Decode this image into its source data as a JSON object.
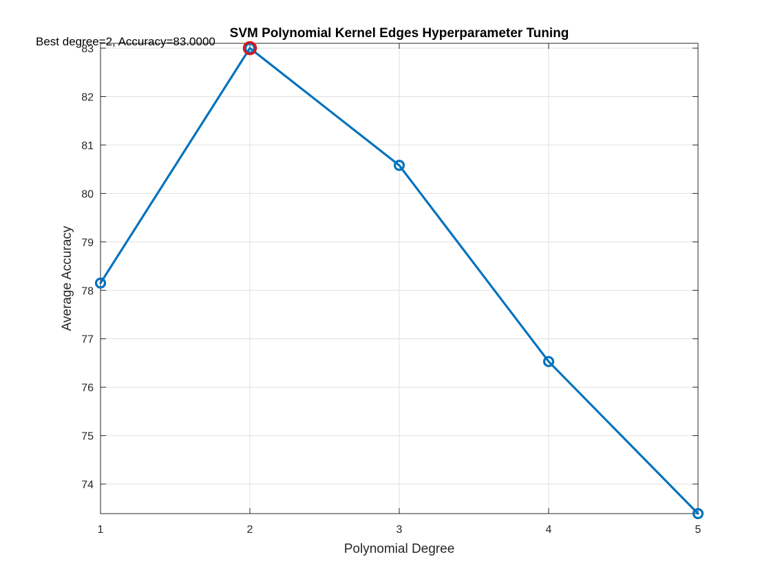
{
  "chart_data": {
    "type": "line",
    "title": "SVM Polynomial Kernel Edges Hyperparameter Tuning",
    "xlabel": "Polynomial Degree",
    "ylabel": "Average Accuracy",
    "x": [
      1,
      2,
      3,
      4,
      5
    ],
    "series": [
      {
        "values": [
          78.15,
          83.0,
          80.58,
          76.53,
          73.39
        ],
        "color": "#0072BD",
        "marker": "circle"
      }
    ],
    "highlight": {
      "x": 2,
      "y": 83.0,
      "color": "#D9171E",
      "marker": "circle"
    },
    "annotation": "Best degree=2, Accuracy=83.0000",
    "xlim": [
      1,
      5
    ],
    "ylim": [
      73.39,
      83.1
    ],
    "xticks": [
      "1",
      "2",
      "3",
      "4",
      "5"
    ],
    "yticks": [
      "74",
      "75",
      "76",
      "77",
      "78",
      "79",
      "80",
      "81",
      "82",
      "83"
    ],
    "grid": true,
    "box": true
  }
}
